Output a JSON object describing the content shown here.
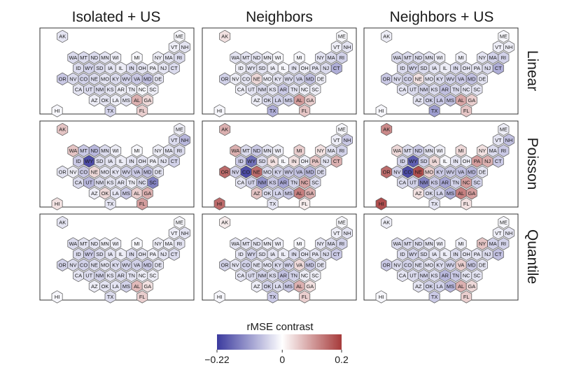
{
  "chart_data": {
    "type": "hexmap",
    "columns": [
      "Isolated + US",
      "Neighbors",
      "Neighbors + US"
    ],
    "rows": [
      "Linear",
      "Poisson",
      "Quantile"
    ],
    "legend": {
      "title": "rMSE contrast",
      "min": -0.22,
      "max": 0.2,
      "ticks": [
        {
          "value": -0.22,
          "label": "−0.22"
        },
        {
          "value": 0,
          "label": "0"
        },
        {
          "value": 0.2,
          "label": "0.2"
        }
      ],
      "colors": {
        "negative": "#3b3a9e",
        "zero": "#ffffff",
        "positive": "#a63a3a"
      }
    },
    "states": [
      "AK",
      "ME",
      "VT",
      "NH",
      "WA",
      "MT",
      "ND",
      "MN",
      "WI",
      "MI",
      "NY",
      "MA",
      "RI",
      "ID",
      "WY",
      "SD",
      "IA",
      "IL",
      "IN",
      "OH",
      "PA",
      "NJ",
      "CT",
      "OR",
      "NV",
      "CO",
      "NE",
      "MO",
      "KY",
      "WV",
      "VA",
      "MD",
      "DE",
      "CA",
      "UT",
      "NM",
      "KS",
      "AR",
      "TN",
      "NC",
      "SC",
      "AZ",
      "OK",
      "LA",
      "MS",
      "AL",
      "GA",
      "HI",
      "TX",
      "FL"
    ],
    "panels": [
      {
        "row": "Linear",
        "col": "Isolated + US",
        "values": {
          "AK": -0.03,
          "ME": -0.01,
          "VT": -0.02,
          "NH": -0.03,
          "WA": -0.04,
          "MT": -0.04,
          "ND": -0.04,
          "MN": -0.03,
          "WI": -0.02,
          "MI": -0.01,
          "NY": -0.02,
          "MA": -0.03,
          "RI": -0.04,
          "ID": -0.04,
          "WY": -0.05,
          "SD": -0.04,
          "IA": -0.03,
          "IL": -0.02,
          "IN": -0.04,
          "OH": -0.03,
          "PA": -0.02,
          "NJ": -0.03,
          "CT": -0.04,
          "OR": -0.06,
          "NV": -0.04,
          "CO": -0.05,
          "NE": -0.04,
          "MO": -0.03,
          "KY": -0.04,
          "WV": -0.05,
          "VA": -0.06,
          "MD": -0.07,
          "DE": -0.03,
          "CA": -0.03,
          "UT": -0.04,
          "NM": -0.04,
          "KS": -0.03,
          "AR": -0.02,
          "TN": -0.02,
          "NC": -0.01,
          "SC": -0.02,
          "AZ": -0.02,
          "OK": -0.03,
          "LA": -0.02,
          "MS": -0.03,
          "AL": 0.08,
          "GA": 0.04,
          "HI": -0.01,
          "TX": -0.05,
          "FL": 0.05
        }
      },
      {
        "row": "Linear",
        "col": "Neighbors",
        "values": {
          "AK": 0.03,
          "ME": -0.01,
          "VT": -0.02,
          "NH": -0.03,
          "WA": -0.03,
          "MT": -0.03,
          "ND": -0.03,
          "MN": -0.02,
          "WI": -0.01,
          "MI": -0.01,
          "NY": -0.03,
          "MA": -0.04,
          "RI": -0.05,
          "ID": -0.02,
          "WY": -0.03,
          "SD": -0.03,
          "IA": -0.02,
          "IL": -0.01,
          "IN": -0.03,
          "OH": -0.02,
          "PA": -0.03,
          "NJ": -0.04,
          "CT": -0.09,
          "OR": -0.05,
          "NV": -0.02,
          "CO": -0.03,
          "NE": 0.04,
          "MO": -0.02,
          "KY": -0.03,
          "WV": -0.04,
          "VA": -0.05,
          "MD": -0.07,
          "DE": -0.02,
          "CA": -0.02,
          "UT": -0.03,
          "NM": -0.04,
          "KS": -0.03,
          "AR": -0.06,
          "TN": -0.03,
          "NC": -0.02,
          "SC": -0.02,
          "AZ": -0.02,
          "OK": -0.04,
          "LA": -0.05,
          "MS": -0.05,
          "AL": 0.1,
          "GA": 0.05,
          "HI": -0.01,
          "TX": -0.09,
          "FL": 0.06
        }
      },
      {
        "row": "Linear",
        "col": "Neighbors + US",
        "values": {
          "AK": -0.02,
          "ME": -0.01,
          "VT": -0.02,
          "NH": -0.02,
          "WA": -0.04,
          "MT": -0.04,
          "ND": -0.04,
          "MN": -0.03,
          "WI": -0.02,
          "MI": -0.02,
          "NY": -0.03,
          "MA": -0.05,
          "RI": -0.05,
          "ID": -0.04,
          "WY": -0.05,
          "SD": -0.04,
          "IA": -0.03,
          "IL": -0.02,
          "IN": -0.04,
          "OH": -0.03,
          "PA": -0.03,
          "NJ": -0.04,
          "CT": -0.09,
          "OR": -0.06,
          "NV": -0.04,
          "CO": -0.05,
          "NE": 0.03,
          "MO": -0.03,
          "KY": -0.04,
          "WV": -0.05,
          "VA": -0.06,
          "MD": -0.07,
          "DE": -0.03,
          "CA": -0.03,
          "UT": -0.04,
          "NM": -0.05,
          "KS": -0.04,
          "AR": -0.07,
          "TN": -0.04,
          "NC": -0.03,
          "SC": -0.03,
          "AZ": -0.03,
          "OK": -0.05,
          "LA": -0.06,
          "MS": -0.07,
          "AL": 0.09,
          "GA": 0.05,
          "HI": -0.01,
          "TX": -0.11,
          "FL": 0.06
        }
      },
      {
        "row": "Poisson",
        "col": "Isolated + US",
        "values": {
          "AK": 0.06,
          "ME": -0.02,
          "VT": -0.04,
          "NH": -0.08,
          "WA": 0.06,
          "MT": -0.06,
          "ND": -0.08,
          "MN": -0.04,
          "WI": -0.02,
          "MI": -0.01,
          "NY": -0.02,
          "MA": -0.03,
          "RI": -0.04,
          "ID": -0.06,
          "WY": -0.2,
          "SD": -0.04,
          "IA": -0.03,
          "IL": -0.02,
          "IN": -0.03,
          "OH": -0.03,
          "PA": -0.02,
          "NJ": -0.03,
          "CT": -0.05,
          "OR": -0.03,
          "NV": -0.02,
          "CO": -0.06,
          "NE": 0.04,
          "MO": -0.03,
          "KY": -0.03,
          "WV": -0.05,
          "VA": -0.06,
          "MD": -0.07,
          "DE": -0.03,
          "CA": -0.04,
          "UT": -0.08,
          "NM": -0.04,
          "KS": -0.03,
          "AR": -0.03,
          "TN": -0.02,
          "NC": -0.04,
          "SC": -0.14,
          "AZ": -0.02,
          "OK": 0.04,
          "LA": -0.03,
          "MS": -0.06,
          "AL": 0.05,
          "GA": 0.08,
          "HI": 0.03,
          "TX": -0.03,
          "FL": 0.1
        }
      },
      {
        "row": "Poisson",
        "col": "Neighbors",
        "values": {
          "AK": 0.08,
          "ME": -0.01,
          "VT": -0.02,
          "NH": -0.06,
          "WA": 0.08,
          "MT": -0.04,
          "ND": -0.06,
          "MN": -0.03,
          "WI": -0.02,
          "MI": 0.05,
          "NY": 0.03,
          "MA": -0.03,
          "RI": -0.05,
          "ID": -0.06,
          "WY": -0.16,
          "SD": -0.04,
          "IA": 0.03,
          "IL": -0.01,
          "IN": 0.03,
          "OH": -0.02,
          "PA": 0.06,
          "NJ": -0.03,
          "CT": 0.08,
          "OR": 0.15,
          "NV": -0.05,
          "CO": -0.2,
          "NE": 0.15,
          "MO": -0.04,
          "KY": -0.05,
          "WV": -0.06,
          "VA": -0.07,
          "MD": -0.08,
          "DE": -0.04,
          "CA": -0.03,
          "UT": -0.05,
          "NM": -0.12,
          "KS": -0.06,
          "AR": -0.1,
          "TN": -0.05,
          "NC": 0.09,
          "SC": -0.04,
          "AZ": 0.06,
          "OK": -0.04,
          "LA": -0.05,
          "MS": -0.06,
          "AL": 0.13,
          "GA": 0.08,
          "HI": 0.15,
          "TX": -0.03,
          "FL": 0.02
        }
      },
      {
        "row": "Poisson",
        "col": "Neighbors + US",
        "values": {
          "AK": 0.12,
          "ME": -0.02,
          "VT": -0.03,
          "NH": -0.07,
          "WA": 0.04,
          "MT": -0.04,
          "ND": -0.06,
          "MN": -0.03,
          "WI": -0.02,
          "MI": 0.04,
          "NY": 0.03,
          "MA": -0.04,
          "RI": -0.06,
          "ID": -0.05,
          "WY": -0.18,
          "SD": -0.05,
          "IA": 0.04,
          "IL": -0.01,
          "IN": -0.03,
          "OH": -0.02,
          "PA": 0.1,
          "NJ": 0.08,
          "CT": -0.06,
          "OR": 0.15,
          "NV": -0.05,
          "CO": -0.2,
          "NE": 0.18,
          "MO": 0.05,
          "KY": -0.06,
          "WV": -0.06,
          "VA": -0.07,
          "MD": -0.08,
          "DE": -0.03,
          "CA": -0.04,
          "UT": -0.05,
          "NM": -0.14,
          "KS": -0.06,
          "AR": -0.1,
          "TN": -0.05,
          "NC": 0.1,
          "SC": -0.05,
          "AZ": 0.03,
          "OK": -0.04,
          "LA": -0.05,
          "MS": -0.09,
          "AL": 0.13,
          "GA": 0.1,
          "HI": 0.18,
          "TX": -0.03,
          "FL": 0.03
        }
      },
      {
        "row": "Quantile",
        "col": "Isolated + US",
        "values": {
          "AK": -0.03,
          "ME": -0.01,
          "VT": -0.02,
          "NH": -0.03,
          "WA": -0.04,
          "MT": -0.03,
          "ND": -0.03,
          "MN": -0.02,
          "WI": -0.02,
          "MI": -0.01,
          "NY": -0.02,
          "MA": -0.02,
          "RI": -0.03,
          "ID": -0.04,
          "WY": -0.06,
          "SD": -0.04,
          "IA": -0.03,
          "IL": -0.02,
          "IN": -0.04,
          "OH": -0.03,
          "PA": -0.02,
          "NJ": -0.03,
          "CT": -0.04,
          "OR": -0.05,
          "NV": -0.04,
          "CO": -0.05,
          "NE": -0.04,
          "MO": -0.03,
          "KY": -0.04,
          "WV": -0.05,
          "VA": -0.05,
          "MD": -0.06,
          "DE": -0.03,
          "CA": -0.03,
          "UT": -0.04,
          "NM": -0.05,
          "KS": -0.03,
          "AR": -0.04,
          "TN": -0.03,
          "NC": -0.02,
          "SC": -0.02,
          "AZ": -0.02,
          "OK": -0.03,
          "LA": -0.03,
          "MS": -0.05,
          "AL": 0.07,
          "GA": 0.03,
          "HI": -0.01,
          "TX": -0.04,
          "FL": 0.05
        }
      },
      {
        "row": "Quantile",
        "col": "Neighbors",
        "values": {
          "AK": 0.02,
          "ME": -0.01,
          "VT": -0.02,
          "NH": -0.03,
          "WA": -0.03,
          "MT": -0.03,
          "ND": -0.03,
          "MN": -0.02,
          "WI": -0.02,
          "MI": -0.01,
          "NY": -0.03,
          "MA": -0.04,
          "RI": -0.05,
          "ID": -0.03,
          "WY": -0.05,
          "SD": -0.03,
          "IA": -0.03,
          "IL": -0.02,
          "IN": -0.04,
          "OH": -0.03,
          "PA": -0.03,
          "NJ": -0.04,
          "CT": -0.06,
          "OR": -0.05,
          "NV": -0.03,
          "CO": -0.05,
          "NE": -0.03,
          "MO": -0.03,
          "KY": -0.04,
          "WV": -0.05,
          "VA": 0.04,
          "MD": -0.06,
          "DE": -0.03,
          "CA": -0.03,
          "UT": -0.04,
          "NM": -0.05,
          "KS": -0.04,
          "AR": -0.07,
          "TN": -0.05,
          "NC": -0.02,
          "SC": -0.02,
          "AZ": -0.02,
          "OK": -0.05,
          "LA": -0.04,
          "MS": -0.06,
          "AL": 0.08,
          "GA": 0.03,
          "HI": -0.01,
          "TX": -0.06,
          "FL": 0.05
        }
      },
      {
        "row": "Quantile",
        "col": "Neighbors + US",
        "values": {
          "AK": -0.02,
          "ME": -0.01,
          "VT": -0.02,
          "NH": -0.03,
          "WA": -0.04,
          "MT": -0.04,
          "ND": -0.04,
          "MN": -0.03,
          "WI": -0.02,
          "MI": -0.02,
          "NY": 0.06,
          "MA": -0.05,
          "RI": -0.05,
          "ID": -0.04,
          "WY": -0.05,
          "SD": -0.04,
          "IA": -0.03,
          "IL": -0.02,
          "IN": -0.04,
          "OH": -0.03,
          "PA": -0.03,
          "NJ": -0.04,
          "CT": -0.07,
          "OR": -0.06,
          "NV": -0.04,
          "CO": -0.05,
          "NE": -0.04,
          "MO": -0.03,
          "KY": -0.04,
          "WV": -0.05,
          "VA": 0.05,
          "MD": -0.06,
          "DE": -0.03,
          "CA": -0.03,
          "UT": -0.04,
          "NM": -0.05,
          "KS": -0.04,
          "AR": -0.08,
          "TN": -0.06,
          "NC": -0.03,
          "SC": -0.03,
          "AZ": -0.03,
          "OK": -0.05,
          "LA": -0.05,
          "MS": -0.08,
          "AL": 0.08,
          "GA": 0.04,
          "HI": -0.01,
          "TX": -0.06,
          "FL": 0.05
        }
      }
    ]
  }
}
